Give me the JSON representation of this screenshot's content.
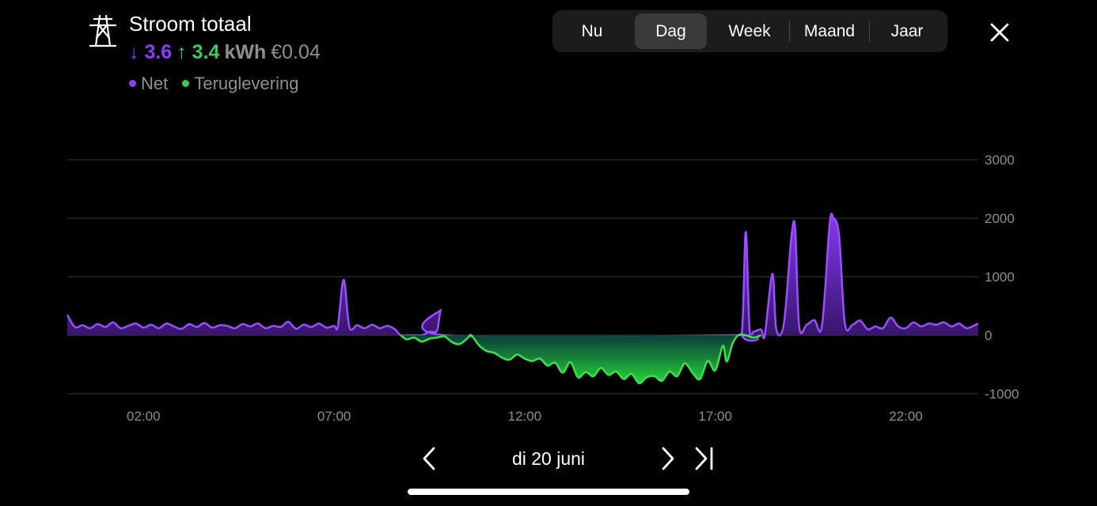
{
  "header": {
    "title": "Stroom totaal",
    "icon": "power-pylon-icon",
    "import_value": "3.6",
    "export_value": "3.4",
    "unit": "kWh",
    "cost": "€0.04",
    "import_arrow": "↓",
    "export_arrow": "↑"
  },
  "legend": [
    {
      "label": "Net",
      "color": "#8b3dff"
    },
    {
      "label": "Teruglevering",
      "color": "#3ec95a"
    }
  ],
  "tabs": [
    {
      "label": "Nu",
      "active": false
    },
    {
      "label": "Dag",
      "active": true
    },
    {
      "label": "Week",
      "active": false
    },
    {
      "label": "Maand",
      "active": false
    },
    {
      "label": "Jaar",
      "active": false
    }
  ],
  "nav": {
    "date": "di 20 juni",
    "prev_icon": "chevron-left-icon",
    "next_icon": "chevron-right-icon",
    "last_icon": "skip-to-end-icon",
    "close_icon": "close-icon"
  },
  "colors": {
    "import": "#8b3dff",
    "export": "#3ec95a",
    "background": "#000000"
  },
  "chart_data": {
    "type": "area",
    "x_unit": "hours",
    "xlim": [
      0,
      24
    ],
    "ylim": [
      -1000,
      3000
    ],
    "yticks": [
      3000,
      2000,
      1000,
      0,
      -1000
    ],
    "ytick_labels": [
      "3000",
      "2000",
      "1000",
      "0",
      "-1000"
    ],
    "xticks": [
      2,
      7,
      12,
      17,
      22
    ],
    "xtick_labels": [
      "02:00",
      "07:00",
      "12:00",
      "17:00",
      "22:00"
    ],
    "grid": true,
    "series": [
      {
        "name": "Net",
        "color": "#8b3dff",
        "points": [
          [
            0.0,
            350
          ],
          [
            0.2,
            140
          ],
          [
            0.4,
            170
          ],
          [
            0.6,
            120
          ],
          [
            0.8,
            190
          ],
          [
            1.0,
            140
          ],
          [
            1.2,
            220
          ],
          [
            1.4,
            120
          ],
          [
            1.6,
            160
          ],
          [
            1.8,
            200
          ],
          [
            2.0,
            130
          ],
          [
            2.2,
            180
          ],
          [
            2.4,
            120
          ],
          [
            2.6,
            200
          ],
          [
            2.8,
            150
          ],
          [
            3.0,
            110
          ],
          [
            3.2,
            190
          ],
          [
            3.4,
            140
          ],
          [
            3.6,
            210
          ],
          [
            3.8,
            130
          ],
          [
            4.0,
            170
          ],
          [
            4.2,
            160
          ],
          [
            4.4,
            120
          ],
          [
            4.6,
            190
          ],
          [
            4.8,
            150
          ],
          [
            5.0,
            200
          ],
          [
            5.2,
            120
          ],
          [
            5.4,
            160
          ],
          [
            5.6,
            140
          ],
          [
            5.8,
            230
          ],
          [
            6.0,
            110
          ],
          [
            6.2,
            180
          ],
          [
            6.4,
            140
          ],
          [
            6.6,
            200
          ],
          [
            6.8,
            130
          ],
          [
            7.0,
            160
          ],
          [
            7.1,
            150
          ],
          [
            7.25,
            950
          ],
          [
            7.4,
            140
          ],
          [
            7.6,
            170
          ],
          [
            7.8,
            120
          ],
          [
            8.0,
            180
          ],
          [
            8.2,
            120
          ],
          [
            8.4,
            160
          ],
          [
            8.6,
            100
          ],
          [
            8.75,
            0
          ],
          [
            9.0,
            0
          ],
          [
            9.3,
            0
          ],
          [
            9.5,
            60
          ],
          [
            9.7,
            80
          ],
          [
            9.8,
            430
          ],
          [
            9.9,
            0
          ],
          [
            17.5,
            0
          ],
          [
            17.7,
            50
          ],
          [
            17.8,
            1770
          ],
          [
            17.9,
            100
          ],
          [
            18.0,
            60
          ],
          [
            18.2,
            100
          ],
          [
            18.3,
            0
          ],
          [
            18.5,
            1050
          ],
          [
            18.6,
            100
          ],
          [
            18.8,
            200
          ],
          [
            19.0,
            1700
          ],
          [
            19.1,
            1800
          ],
          [
            19.2,
            150
          ],
          [
            19.4,
            180
          ],
          [
            19.6,
            260
          ],
          [
            19.8,
            160
          ],
          [
            20.0,
            1900
          ],
          [
            20.1,
            2000
          ],
          [
            20.25,
            1700
          ],
          [
            20.4,
            200
          ],
          [
            20.6,
            180
          ],
          [
            20.8,
            250
          ],
          [
            21.0,
            100
          ],
          [
            21.2,
            150
          ],
          [
            21.4,
            120
          ],
          [
            21.6,
            300
          ],
          [
            21.8,
            150
          ],
          [
            22.0,
            120
          ],
          [
            22.2,
            220
          ],
          [
            22.4,
            150
          ],
          [
            22.6,
            200
          ],
          [
            22.8,
            180
          ],
          [
            23.0,
            220
          ],
          [
            23.2,
            150
          ],
          [
            23.4,
            200
          ],
          [
            23.6,
            120
          ],
          [
            23.9,
            200
          ]
        ]
      },
      {
        "name": "Teruglevering",
        "color": "#3ec95a",
        "points": [
          [
            8.75,
            0
          ],
          [
            8.9,
            -70
          ],
          [
            9.1,
            -40
          ],
          [
            9.3,
            -110
          ],
          [
            9.5,
            -60
          ],
          [
            9.7,
            -40
          ],
          [
            9.9,
            -20
          ],
          [
            10.1,
            -120
          ],
          [
            10.3,
            -150
          ],
          [
            10.5,
            -50
          ],
          [
            10.6,
            0
          ],
          [
            10.8,
            -170
          ],
          [
            11.0,
            -270
          ],
          [
            11.2,
            -300
          ],
          [
            11.4,
            -380
          ],
          [
            11.6,
            -420
          ],
          [
            11.8,
            -330
          ],
          [
            12.0,
            -400
          ],
          [
            12.2,
            -440
          ],
          [
            12.4,
            -400
          ],
          [
            12.6,
            -520
          ],
          [
            12.8,
            -470
          ],
          [
            13.0,
            -640
          ],
          [
            13.2,
            -460
          ],
          [
            13.4,
            -720
          ],
          [
            13.6,
            -630
          ],
          [
            13.8,
            -700
          ],
          [
            14.0,
            -560
          ],
          [
            14.2,
            -680
          ],
          [
            14.4,
            -620
          ],
          [
            14.6,
            -750
          ],
          [
            14.8,
            -660
          ],
          [
            15.0,
            -820
          ],
          [
            15.2,
            -720
          ],
          [
            15.4,
            -700
          ],
          [
            15.6,
            -780
          ],
          [
            15.8,
            -620
          ],
          [
            16.0,
            -700
          ],
          [
            16.2,
            -480
          ],
          [
            16.4,
            -640
          ],
          [
            16.6,
            -750
          ],
          [
            16.8,
            -440
          ],
          [
            17.0,
            -600
          ],
          [
            17.2,
            -180
          ],
          [
            17.3,
            -450
          ],
          [
            17.45,
            -150
          ],
          [
            17.6,
            0
          ],
          [
            17.8,
            0
          ],
          [
            18.0,
            -40
          ],
          [
            18.2,
            0
          ]
        ]
      }
    ]
  }
}
